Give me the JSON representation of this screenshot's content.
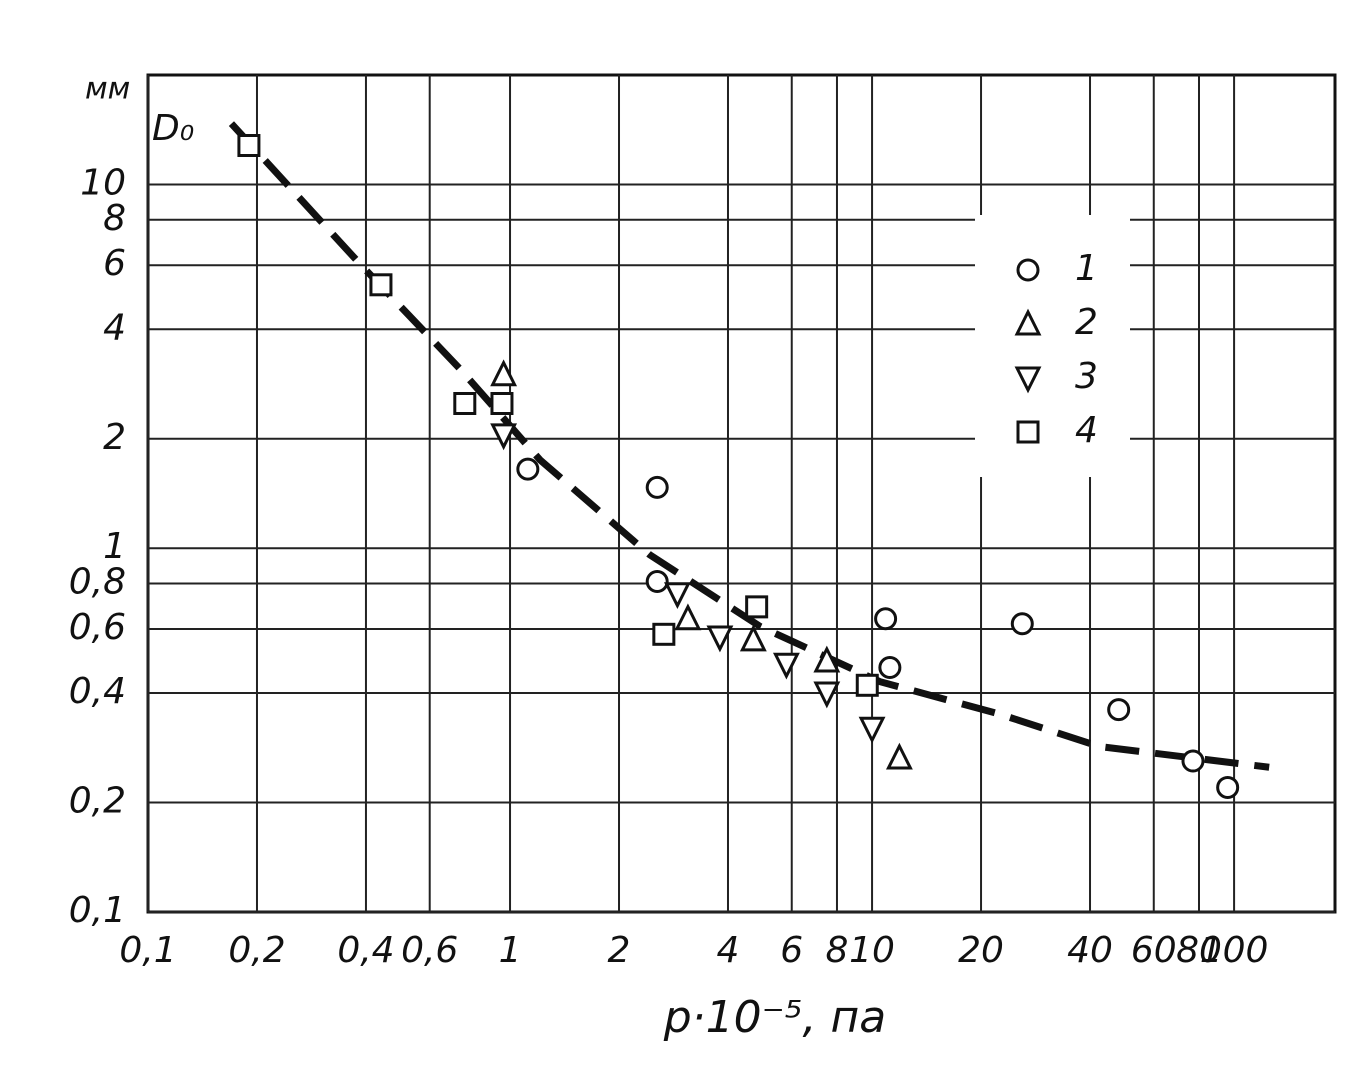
{
  "chart_data": {
    "type": "scatter",
    "log_x": true,
    "log_y": true,
    "grid": true,
    "legend": "upper right",
    "xlabel": "p·10⁻⁵, па",
    "ylabel": "мм",
    "annotation": "D₀",
    "xlim": [
      0.1,
      190
    ],
    "ylim": [
      0.1,
      20
    ],
    "xticks": [
      {
        "value": 0.1,
        "label": "0,1"
      },
      {
        "value": 0.2,
        "label": "0,2"
      },
      {
        "value": 0.4,
        "label": "0,4"
      },
      {
        "value": 0.6,
        "label": "0,6"
      },
      1,
      2,
      4,
      6,
      8,
      10,
      20,
      40,
      60,
      80,
      100
    ],
    "yticks": [
      {
        "value": 0.1,
        "label": "0,1"
      },
      {
        "value": 0.2,
        "label": "0,2"
      },
      {
        "value": 0.4,
        "label": "0,4"
      },
      {
        "value": 0.6,
        "label": "0,6"
      },
      {
        "value": 0.8,
        "label": "0,8"
      },
      1,
      2,
      4,
      6,
      8,
      10
    ],
    "series": [
      {
        "name": "1",
        "color": "#111",
        "marker": "circle",
        "x": [
          1.12,
          2.55,
          2.55,
          10.9,
          11.2,
          26,
          48,
          77,
          96
        ],
        "values": [
          1.65,
          1.47,
          0.81,
          0.64,
          0.47,
          0.62,
          0.36,
          0.26,
          0.22
        ]
      },
      {
        "name": "2",
        "color": "#111",
        "marker": "triangle-up",
        "x": [
          0.96,
          3.1,
          4.7,
          7.5,
          11.9
        ],
        "values": [
          3.0,
          0.64,
          0.56,
          0.49,
          0.265
        ]
      },
      {
        "name": "3",
        "color": "#111",
        "marker": "triangle-down",
        "x": [
          0.96,
          2.9,
          3.8,
          5.8,
          7.5,
          10
        ],
        "values": [
          2.05,
          0.75,
          0.57,
          0.48,
          0.4,
          0.32
        ]
      },
      {
        "name": "4",
        "color": "#111",
        "marker": "square",
        "x": [
          0.19,
          0.44,
          0.75,
          0.95,
          2.66,
          4.8,
          9.7
        ],
        "values": [
          12.8,
          5.3,
          2.5,
          2.5,
          0.58,
          0.69,
          0.42
        ]
      }
    ],
    "curve": {
      "color": "#111",
      "x": [
        0.17,
        0.385,
        0.73,
        1.21,
        2.43,
        4.9,
        10.5,
        22.5,
        42.5,
        125
      ],
      "values": [
        14.7,
        6.05,
        3.1,
        1.75,
        0.96,
        0.61,
        0.43,
        0.35,
        0.285,
        0.25
      ]
    }
  }
}
